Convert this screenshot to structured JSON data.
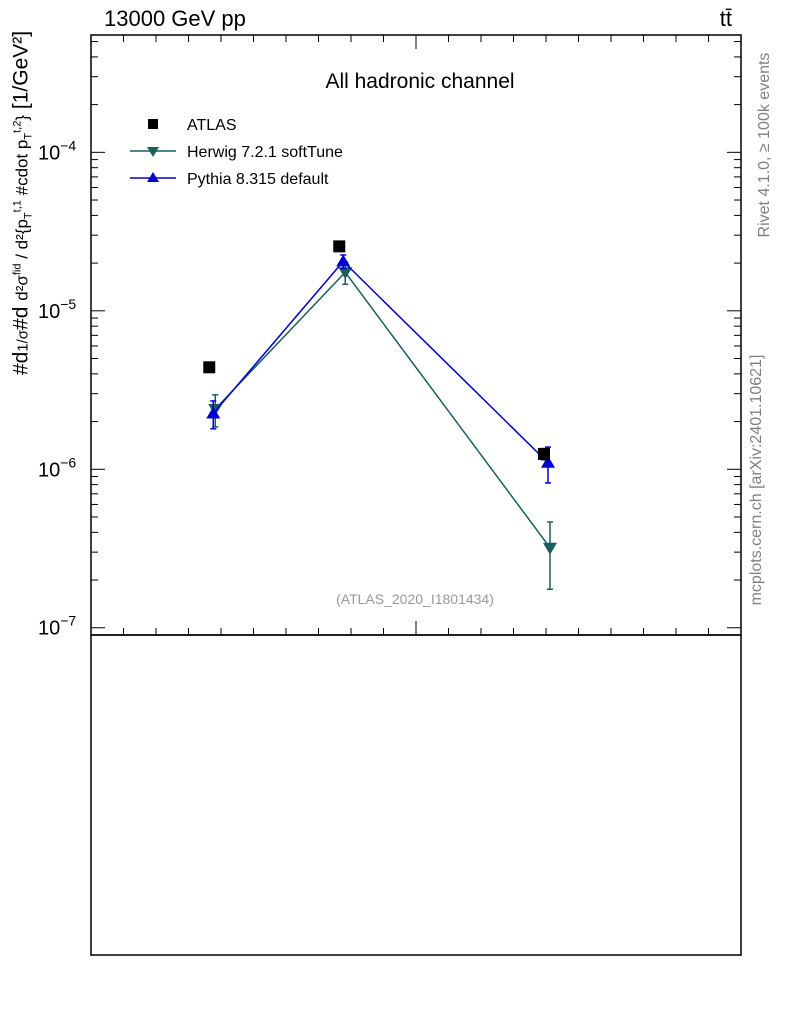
{
  "header": {
    "left": "13000 GeV pp",
    "right": "tt̄"
  },
  "side_labels": {
    "rivet": "Rivet 4.1.0, ≥ 100k events",
    "mcplots": "mcplots.cern.ch [arXiv:2401.10621]"
  },
  "colors": {
    "atlas": "#000000",
    "herwig": "#1a5e5e",
    "pythia": "#0000d0",
    "watermark": "#999999"
  },
  "chart_data": {
    "type": "scatter",
    "title": "All hadronic channel",
    "ylabel": "#d\\frac{1}{σ}#d\\frac{d^2σ^{fid}}{d^2 {p_T^{t,1} #cdot p_T^{t,2}}} [1/GeV^2]",
    "xlabel": "",
    "yscale": "log",
    "ylim": [
      9e-08,
      0.00055
    ],
    "xlim": [
      0,
      1
    ],
    "ytick_labels": [
      "10^{-7}",
      "10^{-6}",
      "10^{-5}",
      "10^{-4}"
    ],
    "watermark": "(ATLAS_2020_I1801434)",
    "legend_position": "top-left",
    "x": [
      0.185,
      0.385,
      0.7
    ],
    "series": [
      {
        "name": "ATLAS",
        "marker": "square",
        "color": "#000000",
        "values": [
          4.4e-06,
          2.55e-05,
          1.25e-06
        ],
        "err": [
          0,
          0,
          1e-07
        ]
      },
      {
        "name": "Herwig 7.2.1 softTune",
        "marker": "triangle-down",
        "color": "#1a5e5e",
        "values": [
          2.4e-06,
          1.75e-05,
          3.2e-07
        ],
        "err": [
          5.5e-07,
          2.8e-06,
          1.45e-07
        ]
      },
      {
        "name": "Pythia 8.315 default",
        "marker": "triangle-up",
        "color": "#0000d0",
        "values": [
          2.25e-06,
          2.05e-05,
          1.1e-06
        ],
        "err": [
          4.5e-07,
          2e-06,
          2.8e-07
        ]
      }
    ]
  }
}
